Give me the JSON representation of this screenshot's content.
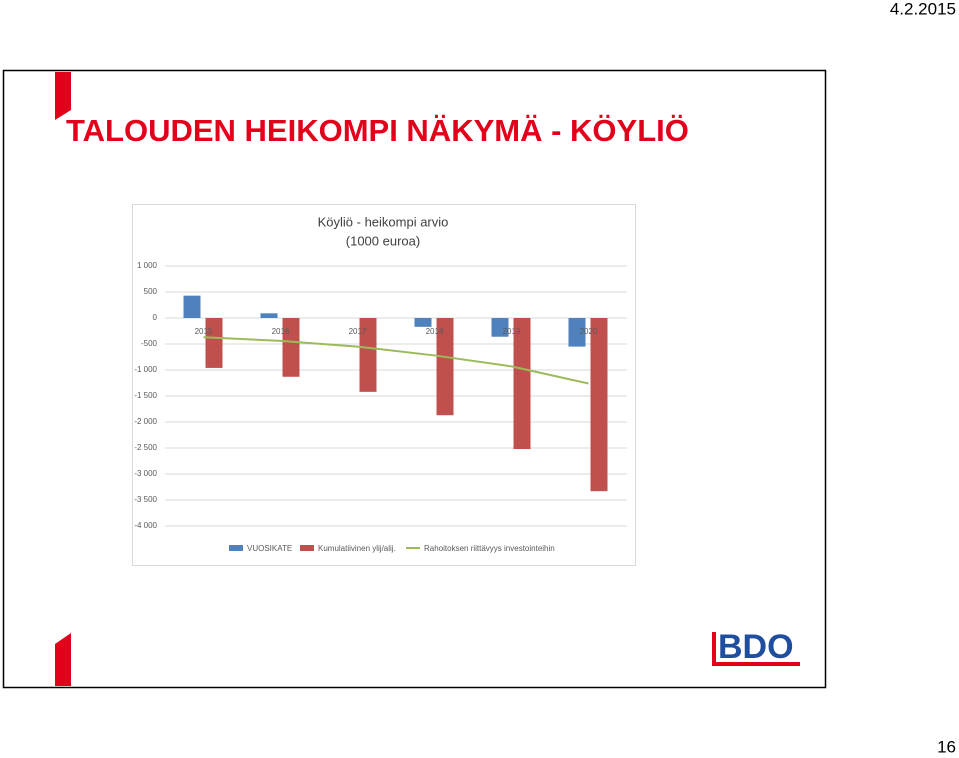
{
  "date": "4.2.2015",
  "title": "TALOUDEN HEIKOMPI NÄKYMÄ - KÖYLIÖ",
  "page_number": "16",
  "logo": "BDO",
  "chart_data": {
    "type": "bar",
    "title": "Köyliö - heikompi arvio",
    "subtitle": "(1000 euroa)",
    "categories": [
      "2015",
      "2016",
      "2017",
      "2018",
      "2019",
      "2020"
    ],
    "series": [
      {
        "name": "VUOSIKATE",
        "color": "#4f81bd",
        "type": "bar",
        "values": [
          430,
          90,
          0,
          -170,
          -360,
          -550
        ]
      },
      {
        "name": "Kumulatiivinen ylij/alij.",
        "color": "#c0504d",
        "type": "bar",
        "values": [
          -960,
          -1130,
          -1420,
          -1870,
          -2520,
          -3330
        ]
      },
      {
        "name": "Rahoitoksen riittävyys investointeihin",
        "color": "#9bbb59",
        "type": "line",
        "values": [
          -370,
          -440,
          -550,
          -720,
          -930,
          -1260
        ]
      }
    ],
    "ylim": [
      -4000,
      1000
    ],
    "yticks": [
      {
        "value": -4000,
        "label": "-4 000"
      },
      {
        "value": -3500,
        "label": "-3 500"
      },
      {
        "value": -3000,
        "label": "-3 000"
      },
      {
        "value": -2500,
        "label": "-2 500"
      },
      {
        "value": -2000,
        "label": "-2 000"
      },
      {
        "value": -1500,
        "label": "-1 500"
      },
      {
        "value": -1000,
        "label": "-1 000"
      },
      -500,
      0,
      500,
      {
        "value": 1000,
        "label": "1 000"
      }
    ],
    "grid": true
  }
}
